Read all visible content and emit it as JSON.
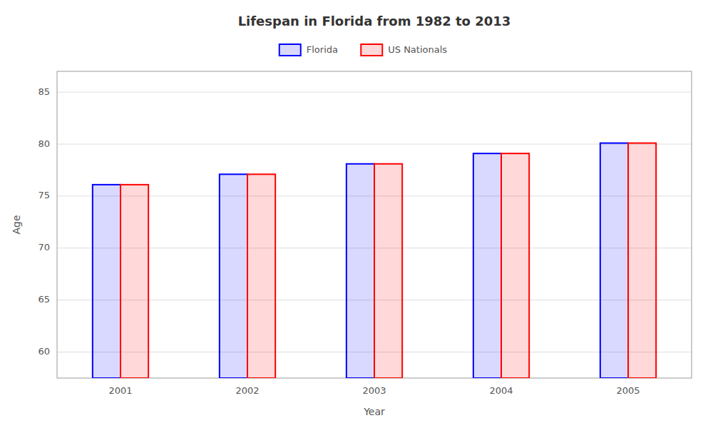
{
  "chart_data": {
    "type": "bar",
    "title": "Lifespan in Florida from 1982 to 2013",
    "xlabel": "Year",
    "ylabel": "Age",
    "categories": [
      "2001",
      "2002",
      "2003",
      "2004",
      "2005"
    ],
    "series": [
      {
        "name": "Florida",
        "color": "#0000ff",
        "values": [
          76.1,
          77.1,
          78.1,
          79.1,
          80.1
        ]
      },
      {
        "name": "US Nationals",
        "color": "#ff0000",
        "values": [
          76.1,
          77.1,
          78.1,
          79.1,
          80.1
        ]
      }
    ],
    "ylim": [
      57.5,
      87
    ],
    "yticks": [
      60,
      65,
      70,
      75,
      80,
      85
    ],
    "grid": true,
    "legend": "top"
  }
}
